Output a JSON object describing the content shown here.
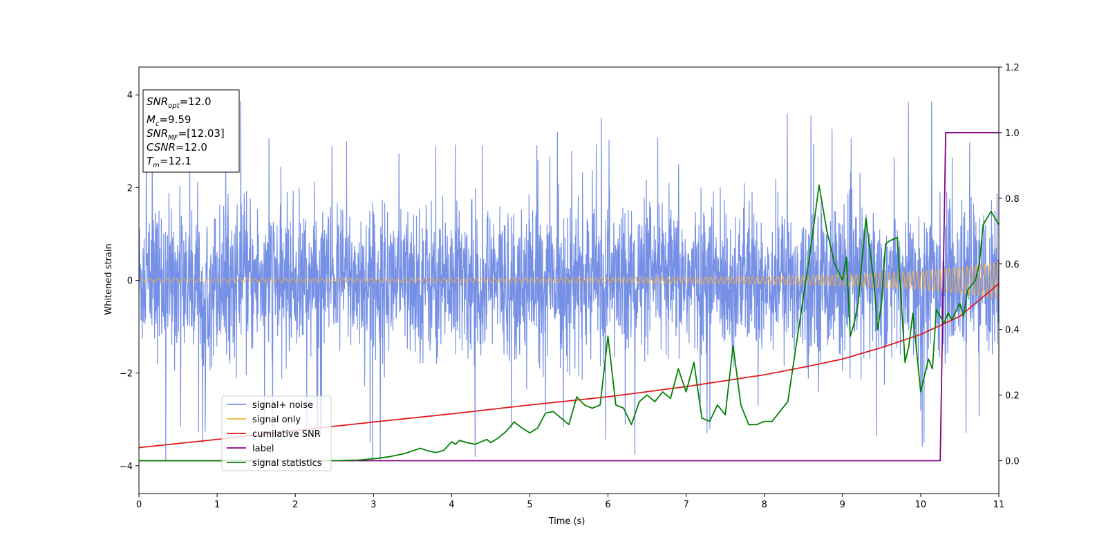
{
  "chart_data": {
    "type": "line",
    "xlabel": "Time (s)",
    "ylabel": "Whitened strain",
    "xlim": [
      0,
      11
    ],
    "ylim": [
      -4.6,
      4.6
    ],
    "y2lim": [
      -0.1,
      1.2
    ],
    "x_ticks": [
      "0",
      "1",
      "2",
      "3",
      "4",
      "5",
      "6",
      "7",
      "8",
      "9",
      "10",
      "11"
    ],
    "y_ticks": [
      "4",
      "2",
      "0",
      "−2",
      "−4"
    ],
    "y_tick_values": [
      4,
      2,
      0,
      -2,
      -4
    ],
    "y2_ticks": [
      "1.2",
      "1.0",
      "0.8",
      "0.6",
      "0.4",
      "0.2",
      "0.0"
    ],
    "y2_tick_values": [
      1.2,
      1.0,
      0.8,
      0.6,
      0.4,
      0.2,
      0.0
    ],
    "legend_position": "lower-left",
    "info_box": {
      "snr_opt": {
        "sym": "SNR",
        "sub": "opt",
        "value": "=12.0"
      },
      "mc": {
        "sym": "M",
        "sub": "c",
        "value": "=9.59"
      },
      "snr_mf": {
        "sym": "SNR",
        "sub": "MF",
        "value": "=[12.03]"
      },
      "csnr": {
        "sym": "CSNR",
        "sub": "",
        "value": "=12.0"
      },
      "tm": {
        "sym": "T",
        "sub": "m",
        "value": "=12.1"
      }
    },
    "series": [
      {
        "name": "signal+ noise",
        "color": "#7690e6",
        "axis": "left",
        "description": "noise band approx between -2.3 and 2.3, spikes up to ±4"
      },
      {
        "name": "signal only",
        "color": "#f5b040",
        "axis": "left",
        "envelope": {
          "x": [
            0,
            4,
            6,
            8,
            9,
            10,
            10.5,
            11
          ],
          "amp": [
            0.04,
            0.05,
            0.06,
            0.08,
            0.12,
            0.2,
            0.28,
            0.4
          ]
        }
      },
      {
        "name": "cumilative SNR",
        "color": "#e41a1c",
        "axis": "right",
        "x": [
          0,
          1,
          2,
          3,
          4,
          5,
          6,
          7,
          8,
          8.5,
          9,
          9.5,
          10,
          10.5,
          11
        ],
        "y": [
          0.04,
          0.065,
          0.092,
          0.118,
          0.143,
          0.17,
          0.195,
          0.226,
          0.262,
          0.285,
          0.31,
          0.345,
          0.385,
          0.44,
          0.54
        ]
      },
      {
        "name": "label",
        "color": "#800080",
        "axis": "right",
        "x": [
          0,
          10.25,
          10.32,
          11
        ],
        "y": [
          0.0,
          0.0,
          1.0,
          1.0
        ]
      },
      {
        "name": "signal statistics",
        "color": "#008000",
        "axis": "right",
        "x": [
          0,
          2.5,
          2.8,
          3.0,
          3.2,
          3.4,
          3.5,
          3.6,
          3.7,
          3.8,
          3.9,
          4.0,
          4.05,
          4.1,
          4.2,
          4.3,
          4.4,
          4.45,
          4.5,
          4.6,
          4.7,
          4.8,
          4.9,
          5.0,
          5.1,
          5.2,
          5.3,
          5.35,
          5.4,
          5.5,
          5.6,
          5.7,
          5.8,
          5.9,
          6.0,
          6.1,
          6.2,
          6.3,
          6.4,
          6.5,
          6.6,
          6.7,
          6.8,
          6.9,
          7.0,
          7.1,
          7.2,
          7.3,
          7.4,
          7.5,
          7.6,
          7.7,
          7.8,
          7.9,
          8.0,
          8.1,
          8.2,
          8.3,
          8.4,
          8.5,
          8.6,
          8.7,
          8.8,
          8.9,
          9.0,
          9.05,
          9.1,
          9.15,
          9.2,
          9.3,
          9.4,
          9.45,
          9.5,
          9.55,
          9.6,
          9.7,
          9.8,
          9.85,
          9.9,
          10.0,
          10.1,
          10.15,
          10.2,
          10.3,
          10.35,
          10.4,
          10.5,
          10.55,
          10.6,
          10.7,
          10.75,
          10.8,
          10.9,
          11.0
        ],
        "y": [
          0.0,
          0.0,
          0.002,
          0.006,
          0.012,
          0.022,
          0.03,
          0.038,
          0.03,
          0.025,
          0.032,
          0.058,
          0.05,
          0.062,
          0.055,
          0.05,
          0.06,
          0.065,
          0.055,
          0.07,
          0.09,
          0.118,
          0.1,
          0.085,
          0.1,
          0.145,
          0.15,
          0.14,
          0.13,
          0.11,
          0.195,
          0.17,
          0.16,
          0.17,
          0.38,
          0.17,
          0.16,
          0.11,
          0.18,
          0.2,
          0.18,
          0.21,
          0.19,
          0.28,
          0.21,
          0.3,
          0.13,
          0.12,
          0.17,
          0.14,
          0.35,
          0.17,
          0.11,
          0.11,
          0.12,
          0.12,
          0.15,
          0.18,
          0.34,
          0.5,
          0.66,
          0.84,
          0.7,
          0.6,
          0.55,
          0.62,
          0.38,
          0.42,
          0.48,
          0.74,
          0.55,
          0.4,
          0.48,
          0.66,
          0.67,
          0.68,
          0.3,
          0.35,
          0.45,
          0.21,
          0.31,
          0.28,
          0.46,
          0.42,
          0.45,
          0.43,
          0.48,
          0.44,
          0.52,
          0.55,
          0.6,
          0.72,
          0.76,
          0.72
        ]
      }
    ]
  }
}
